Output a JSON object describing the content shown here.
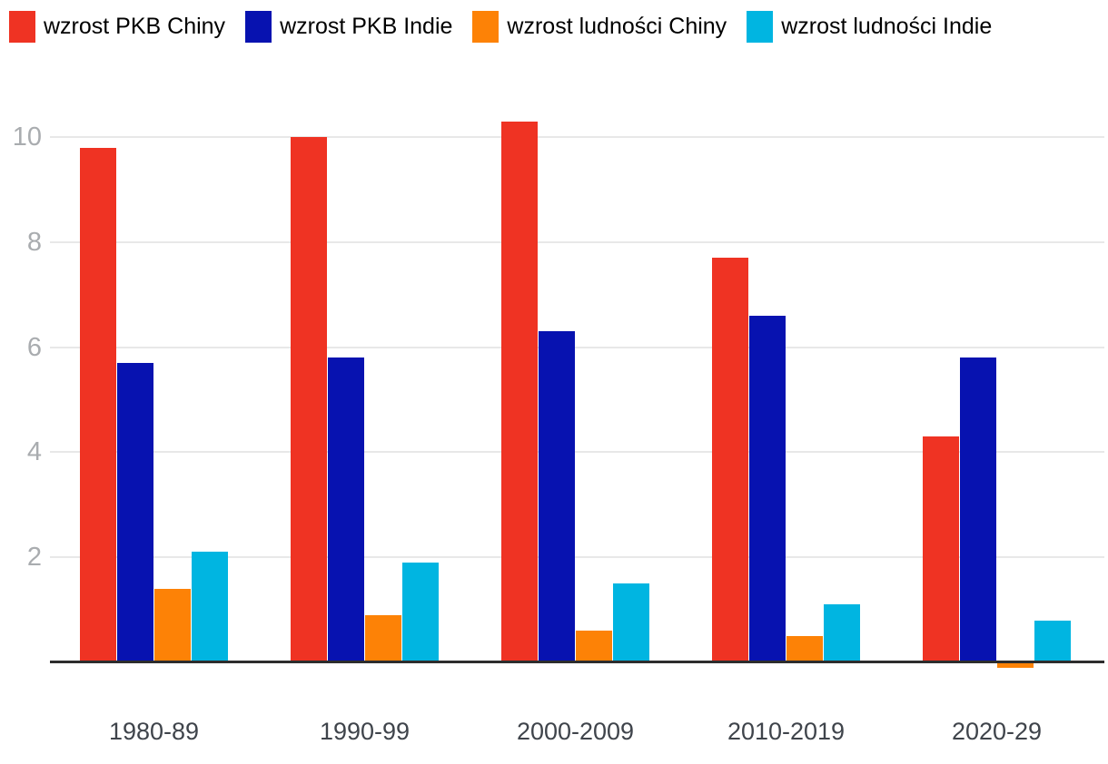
{
  "chart_data": {
    "type": "bar",
    "title": "",
    "xlabel": "",
    "ylabel": "",
    "categories": [
      "1980-89",
      "1990-99",
      "2000-2009",
      "2010-2019",
      "2020-29"
    ],
    "series": [
      {
        "name": "wzrost PKB Chiny",
        "color": "#ef3323",
        "values": [
          9.8,
          10.0,
          10.3,
          7.7,
          4.3
        ]
      },
      {
        "name": "wzrost PKB Indie",
        "color": "#0712b0",
        "values": [
          5.7,
          5.8,
          6.3,
          6.6,
          5.8
        ]
      },
      {
        "name": "wzrost ludności Chiny",
        "color": "#fd8206",
        "values": [
          1.4,
          0.9,
          0.6,
          0.5,
          -0.1
        ]
      },
      {
        "name": "wzrost ludności Indie",
        "color": "#00b5e1",
        "values": [
          2.1,
          1.9,
          1.5,
          1.1,
          0.8
        ]
      }
    ],
    "y_ticks": [
      2,
      4,
      6,
      8,
      10
    ],
    "ylim": [
      -0.2,
      10.5
    ],
    "grid": true,
    "legend_position": "top"
  },
  "colors": {
    "background": "#ffffff",
    "gridline": "#e8e8e8",
    "axis_line": "#2d2d2d",
    "y_tick_label": "#a9acaf",
    "x_tick_label": "#3f444b",
    "legend_text": "#000000"
  }
}
